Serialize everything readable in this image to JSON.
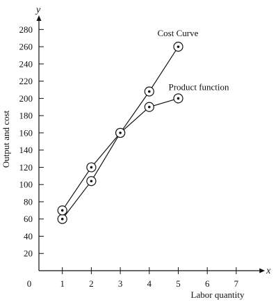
{
  "chart_data": {
    "type": "line",
    "xlabel": "Labor quantity",
    "ylabel": "Output and cost",
    "x_axis_letter": "x",
    "y_axis_letter": "y",
    "origin_label": "0",
    "xlim": [
      0,
      7.8
    ],
    "ylim": [
      0,
      290
    ],
    "x_ticks": [
      1,
      2,
      3,
      4,
      5,
      6,
      7
    ],
    "y_ticks": [
      20,
      40,
      60,
      80,
      100,
      120,
      140,
      160,
      180,
      200,
      220,
      240,
      260,
      280
    ],
    "grid": false,
    "series": [
      {
        "name": "Cost Curve",
        "x": [
          1,
          2,
          3,
          4,
          5
        ],
        "y": [
          60,
          104,
          160,
          208,
          260
        ]
      },
      {
        "name": "Product function",
        "x": [
          1,
          2,
          3,
          4,
          5
        ],
        "y": [
          70,
          120,
          160,
          190,
          200
        ]
      }
    ]
  }
}
